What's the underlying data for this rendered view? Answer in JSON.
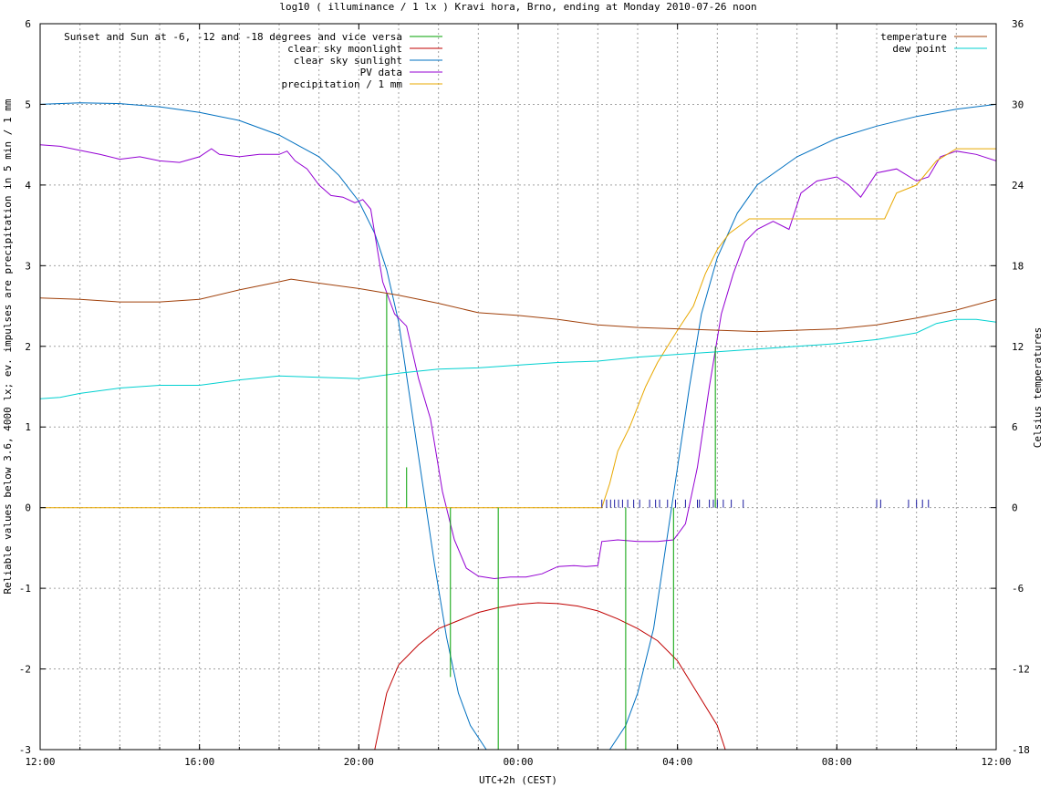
{
  "chart_data": {
    "type": "line",
    "title": "log10 ( illuminance / 1 lx ) Kravi hora, Brno, ending at Monday 2010-07-26 noon",
    "xlabel": "UTC+2h (CEST)",
    "ylabel": "Reliable values below 3.6, 4000 lx; ev. impulses are precipitation in 5 min / 1 mm",
    "y2label": "Celsius temperatures",
    "x_unit": "hours since 12:00",
    "xlim": [
      0,
      24
    ],
    "ylim": [
      -3,
      6
    ],
    "y2lim": [
      -18,
      36
    ],
    "x_tick_labels": [
      "12:00",
      "16:00",
      "20:00",
      "00:00",
      "04:00",
      "08:00",
      "12:00"
    ],
    "x_tick_positions": [
      0,
      4,
      8,
      12,
      16,
      20,
      24
    ],
    "y_ticks": [
      -3,
      -2,
      -1,
      0,
      1,
      2,
      3,
      4,
      5,
      6
    ],
    "y2_ticks": [
      -18,
      -12,
      -6,
      0,
      6,
      12,
      18,
      24,
      30,
      36
    ],
    "grid": true,
    "legend_left": [
      {
        "name": "Sunset and Sun at -6, -12 and -18 degrees and vice versa",
        "color": "#00a000"
      },
      {
        "name": "clear sky moonlight",
        "color": "#c00000"
      },
      {
        "name": "clear sky sunlight",
        "color": "#0070c0"
      },
      {
        "name": "PV data",
        "color": "#9400d3"
      },
      {
        "name": "precipitation / 1 mm",
        "color": "#e8a800"
      }
    ],
    "legend_right": [
      {
        "name": "temperature",
        "color": "#a0400a"
      },
      {
        "name": "dew point",
        "color": "#00d0d0"
      }
    ],
    "series": [
      {
        "name": "clear sky sunlight",
        "color": "#0070c0",
        "axis": "y",
        "points": [
          [
            0,
            5.0
          ],
          [
            1,
            5.02
          ],
          [
            2,
            5.01
          ],
          [
            3,
            4.97
          ],
          [
            4,
            4.9
          ],
          [
            5,
            4.8
          ],
          [
            6,
            4.62
          ],
          [
            7,
            4.35
          ],
          [
            7.5,
            4.12
          ],
          [
            8,
            3.8
          ],
          [
            8.4,
            3.4
          ],
          [
            8.7,
            2.95
          ],
          [
            9,
            2.3
          ],
          [
            9.3,
            1.3
          ],
          [
            9.6,
            0.3
          ],
          [
            9.9,
            -0.7
          ],
          [
            10.2,
            -1.6
          ],
          [
            10.5,
            -2.3
          ],
          [
            10.8,
            -2.7
          ],
          [
            11.2,
            -3.0
          ]
        ]
      },
      {
        "name": "clear sky sunlight (morning)",
        "color": "#0070c0",
        "axis": "y",
        "points": [
          [
            14.3,
            -3.0
          ],
          [
            14.7,
            -2.7
          ],
          [
            15.0,
            -2.3
          ],
          [
            15.4,
            -1.5
          ],
          [
            15.7,
            -0.5
          ],
          [
            16.0,
            0.5
          ],
          [
            16.3,
            1.5
          ],
          [
            16.6,
            2.4
          ],
          [
            17.0,
            3.1
          ],
          [
            17.5,
            3.65
          ],
          [
            18,
            4.0
          ],
          [
            19,
            4.35
          ],
          [
            20,
            4.58
          ],
          [
            21,
            4.73
          ],
          [
            22,
            4.85
          ],
          [
            23,
            4.94
          ],
          [
            24,
            5.0
          ]
        ]
      },
      {
        "name": "clear sky moonlight",
        "color": "#c00000",
        "axis": "y",
        "points": [
          [
            8.4,
            -3.0
          ],
          [
            8.7,
            -2.3
          ],
          [
            9.0,
            -1.95
          ],
          [
            9.5,
            -1.7
          ],
          [
            10,
            -1.5
          ],
          [
            10.5,
            -1.4
          ],
          [
            11,
            -1.3
          ],
          [
            11.5,
            -1.24
          ],
          [
            12,
            -1.2
          ],
          [
            12.5,
            -1.18
          ],
          [
            13,
            -1.19
          ],
          [
            13.5,
            -1.22
          ],
          [
            14,
            -1.28
          ],
          [
            14.5,
            -1.38
          ],
          [
            15,
            -1.5
          ],
          [
            15.5,
            -1.65
          ],
          [
            16,
            -1.9
          ],
          [
            16.5,
            -2.3
          ],
          [
            17,
            -2.7
          ],
          [
            17.2,
            -3.0
          ]
        ]
      },
      {
        "name": "PV data",
        "color": "#9400d3",
        "axis": "y",
        "points": [
          [
            0,
            4.5
          ],
          [
            0.5,
            4.48
          ],
          [
            1,
            4.43
          ],
          [
            1.5,
            4.38
          ],
          [
            2,
            4.32
          ],
          [
            2.5,
            4.35
          ],
          [
            3,
            4.3
          ],
          [
            3.5,
            4.28
          ],
          [
            4,
            4.35
          ],
          [
            4.3,
            4.45
          ],
          [
            4.5,
            4.38
          ],
          [
            5,
            4.35
          ],
          [
            5.5,
            4.38
          ],
          [
            6,
            4.38
          ],
          [
            6.2,
            4.42
          ],
          [
            6.4,
            4.3
          ],
          [
            6.7,
            4.2
          ],
          [
            7,
            4.0
          ],
          [
            7.3,
            3.87
          ],
          [
            7.6,
            3.85
          ],
          [
            7.9,
            3.78
          ],
          [
            8.1,
            3.82
          ],
          [
            8.3,
            3.7
          ],
          [
            8.6,
            2.8
          ],
          [
            8.9,
            2.4
          ],
          [
            9.2,
            2.25
          ],
          [
            9.5,
            1.6
          ],
          [
            9.8,
            1.1
          ],
          [
            10.1,
            0.2
          ],
          [
            10.4,
            -0.4
          ],
          [
            10.7,
            -0.75
          ],
          [
            11.0,
            -0.85
          ],
          [
            11.4,
            -0.88
          ],
          [
            11.8,
            -0.86
          ],
          [
            12.2,
            -0.86
          ],
          [
            12.6,
            -0.82
          ],
          [
            13,
            -0.73
          ],
          [
            13.4,
            -0.72
          ],
          [
            13.7,
            -0.73
          ],
          [
            14.0,
            -0.72
          ],
          [
            14.1,
            -0.42
          ],
          [
            14.5,
            -0.4
          ],
          [
            15,
            -0.42
          ],
          [
            15.5,
            -0.42
          ],
          [
            15.9,
            -0.4
          ],
          [
            16.2,
            -0.2
          ],
          [
            16.5,
            0.5
          ],
          [
            16.8,
            1.5
          ],
          [
            17.1,
            2.4
          ],
          [
            17.4,
            2.9
          ],
          [
            17.7,
            3.3
          ],
          [
            18.0,
            3.45
          ],
          [
            18.4,
            3.55
          ],
          [
            18.8,
            3.45
          ],
          [
            19.1,
            3.9
          ],
          [
            19.5,
            4.05
          ],
          [
            20,
            4.1
          ],
          [
            20.3,
            4.0
          ],
          [
            20.6,
            3.85
          ],
          [
            21,
            4.15
          ],
          [
            21.5,
            4.2
          ],
          [
            22,
            4.05
          ],
          [
            22.3,
            4.1
          ],
          [
            22.6,
            4.35
          ],
          [
            23,
            4.42
          ],
          [
            23.5,
            4.38
          ],
          [
            24,
            4.3
          ]
        ]
      },
      {
        "name": "precipitation / 1 mm",
        "color": "#e8a800",
        "axis": "y",
        "points": [
          [
            0,
            0
          ],
          [
            14.1,
            0
          ],
          [
            14.3,
            0.3
          ],
          [
            14.5,
            0.7
          ],
          [
            14.8,
            1.0
          ],
          [
            15.2,
            1.5
          ],
          [
            15.5,
            1.8
          ],
          [
            16.0,
            2.2
          ],
          [
            16.4,
            2.5
          ],
          [
            16.7,
            2.9
          ],
          [
            17.0,
            3.2
          ],
          [
            17.3,
            3.4
          ],
          [
            17.8,
            3.58
          ],
          [
            19,
            3.58
          ],
          [
            20.5,
            3.58
          ],
          [
            21.2,
            3.58
          ],
          [
            21.5,
            3.9
          ],
          [
            22.0,
            4.0
          ],
          [
            22.5,
            4.3
          ],
          [
            23.0,
            4.45
          ],
          [
            24,
            4.45
          ]
        ]
      },
      {
        "name": "temperature",
        "color": "#a0400a",
        "axis": "y2",
        "points": [
          [
            0,
            15.6
          ],
          [
            1,
            15.5
          ],
          [
            2,
            15.3
          ],
          [
            3,
            15.3
          ],
          [
            4,
            15.5
          ],
          [
            5,
            16.2
          ],
          [
            6,
            16.8
          ],
          [
            6.3,
            17.0
          ],
          [
            7,
            16.7
          ],
          [
            8,
            16.3
          ],
          [
            9,
            15.8
          ],
          [
            10,
            15.2
          ],
          [
            11,
            14.5
          ],
          [
            12,
            14.3
          ],
          [
            13,
            14.0
          ],
          [
            14,
            13.6
          ],
          [
            15,
            13.4
          ],
          [
            16,
            13.3
          ],
          [
            17,
            13.2
          ],
          [
            18,
            13.1
          ],
          [
            19,
            13.2
          ],
          [
            20,
            13.3
          ],
          [
            21,
            13.6
          ],
          [
            22,
            14.1
          ],
          [
            23,
            14.7
          ],
          [
            24,
            15.5
          ]
        ]
      },
      {
        "name": "dew point",
        "color": "#00d0d0",
        "axis": "y2",
        "points": [
          [
            0,
            8.1
          ],
          [
            0.5,
            8.2
          ],
          [
            1,
            8.5
          ],
          [
            2,
            8.9
          ],
          [
            3,
            9.1
          ],
          [
            4,
            9.1
          ],
          [
            5,
            9.5
          ],
          [
            6,
            9.8
          ],
          [
            7,
            9.7
          ],
          [
            8,
            9.6
          ],
          [
            9,
            10.0
          ],
          [
            10,
            10.3
          ],
          [
            11,
            10.4
          ],
          [
            12,
            10.6
          ],
          [
            13,
            10.8
          ],
          [
            14,
            10.9
          ],
          [
            15,
            11.2
          ],
          [
            16,
            11.4
          ],
          [
            17,
            11.6
          ],
          [
            18,
            11.8
          ],
          [
            19,
            12.0
          ],
          [
            20,
            12.2
          ],
          [
            21,
            12.5
          ],
          [
            22,
            13.0
          ],
          [
            22.5,
            13.7
          ],
          [
            23,
            14.0
          ],
          [
            23.5,
            14.0
          ],
          [
            24,
            13.8
          ]
        ]
      },
      {
        "name": "sun event lines",
        "color": "#00a000",
        "axis": "y",
        "impulses": [
          [
            8.7,
            2.65
          ],
          [
            9.2,
            0.5
          ],
          [
            10.3,
            -2.1
          ],
          [
            11.5,
            -3.0
          ],
          [
            14.7,
            -3.0
          ],
          [
            15.9,
            -2.0
          ],
          [
            16.95,
            2.0
          ]
        ]
      },
      {
        "name": "precipitation impulses",
        "color": "#1a1aa0",
        "axis": "y",
        "impulses": [
          [
            14.1,
            0.1
          ],
          [
            14.22,
            0.1
          ],
          [
            14.32,
            0.1
          ],
          [
            14.42,
            0.1
          ],
          [
            14.52,
            0.1
          ],
          [
            14.62,
            0.1
          ],
          [
            14.75,
            0.1
          ],
          [
            14.9,
            0.1
          ],
          [
            15.05,
            0.1
          ],
          [
            15.3,
            0.1
          ],
          [
            15.45,
            0.1
          ],
          [
            15.55,
            0.1
          ],
          [
            15.75,
            0.1
          ],
          [
            15.95,
            0.1
          ],
          [
            16.2,
            0.1
          ],
          [
            16.5,
            0.1
          ],
          [
            16.55,
            0.1
          ],
          [
            16.8,
            0.1
          ],
          [
            16.9,
            0.1
          ],
          [
            17.0,
            0.1
          ],
          [
            17.15,
            0.1
          ],
          [
            17.35,
            0.1
          ],
          [
            17.65,
            0.1
          ],
          [
            21.0,
            0.1
          ],
          [
            21.1,
            0.1
          ],
          [
            21.8,
            0.1
          ],
          [
            22.0,
            0.1
          ],
          [
            22.15,
            0.1
          ],
          [
            22.3,
            0.1
          ]
        ]
      }
    ]
  }
}
